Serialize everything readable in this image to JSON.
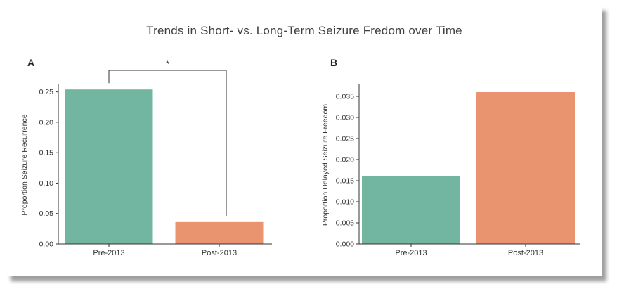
{
  "figure_title": "Trends in Short- vs. Long-Term Seizure Fredom over Time",
  "colors": {
    "pre": "#72b6a1",
    "post": "#e9946f",
    "axis": "#333333",
    "text": "#333333"
  },
  "chart_data": [
    {
      "panel_label": "A",
      "type": "bar",
      "categories": [
        "Pre-2013",
        "Post-2013"
      ],
      "values": [
        0.254,
        0.036
      ],
      "ylabel": "Proportion Seizure Recurrence",
      "ylim": [
        0,
        0.26
      ],
      "yticks": [
        0.0,
        0.05,
        0.1,
        0.15,
        0.2,
        0.25
      ],
      "ytick_labels": [
        "0.00",
        "0.05",
        "0.10",
        "0.15",
        "0.20",
        "0.25"
      ],
      "bar_colors": [
        "#72b6a1",
        "#e9946f"
      ],
      "significance": {
        "between": [
          0,
          1
        ],
        "label": "*"
      }
    },
    {
      "panel_label": "B",
      "type": "bar",
      "categories": [
        "Pre-2013",
        "Post-2013"
      ],
      "values": [
        0.016,
        0.036
      ],
      "ylabel": "Proportion Delayed Seizure Freedom",
      "ylim": [
        0,
        0.0375
      ],
      "yticks": [
        0.0,
        0.005,
        0.01,
        0.015,
        0.02,
        0.025,
        0.03,
        0.035
      ],
      "ytick_labels": [
        "0.000",
        "0.005",
        "0.010",
        "0.015",
        "0.020",
        "0.025",
        "0.030",
        "0.035"
      ],
      "bar_colors": [
        "#72b6a1",
        "#e9946f"
      ]
    }
  ]
}
